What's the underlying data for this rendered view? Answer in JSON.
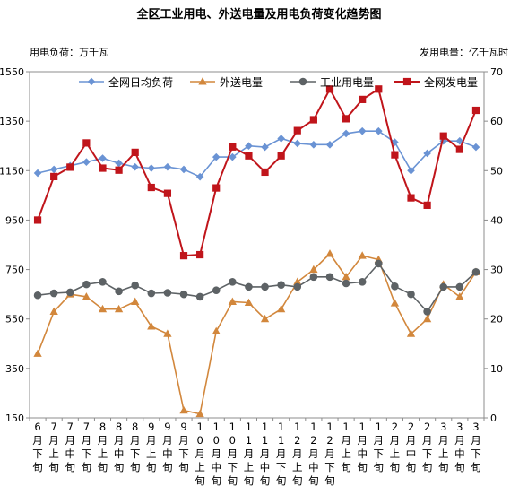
{
  "chart_data": {
    "type": "line",
    "title": "全区工业用电、外送电量及用电负荷变化趋势图",
    "left_unit": "用电负荷：万千瓦",
    "right_unit": "发用电量：亿千瓦时",
    "y_left_range": [
      150,
      1550
    ],
    "y_left_ticks": [
      "150",
      "350",
      "550",
      "750",
      "950",
      "1150",
      "1350",
      "1550"
    ],
    "y_right_range": [
      0,
      70
    ],
    "y_right_ticks": [
      "0",
      "10",
      "20",
      "30",
      "40",
      "50",
      "60",
      "70"
    ],
    "categories": [
      "6月下旬",
      "7月上旬",
      "7月中旬",
      "7月下旬",
      "8月上旬",
      "8月中旬",
      "8月下旬",
      "9月上旬",
      "9月中旬",
      "9月下旬",
      "10月上旬",
      "10月中旬",
      "10月下旬",
      "11月上旬",
      "11月中旬",
      "11月下旬",
      "12月上旬",
      "12月中旬",
      "12月下旬",
      "1月上旬",
      "1月中旬",
      "1月下旬",
      "2月上旬",
      "2月中旬",
      "2月下旬",
      "3月上旬",
      "3月中旬",
      "3月下旬"
    ],
    "series": [
      {
        "name": "全网日均负荷",
        "axis": "left",
        "color": "#6a93d4",
        "marker": "diamond",
        "values": [
          1140,
          1155,
          1170,
          1185,
          1200,
          1180,
          1165,
          1160,
          1165,
          1155,
          1125,
          1205,
          1205,
          1250,
          1245,
          1280,
          1260,
          1255,
          1255,
          1300,
          1310,
          1310,
          1265,
          1150,
          1220,
          1270,
          1270,
          1245
        ]
      },
      {
        "name": "外送电量",
        "axis": "right",
        "color": "#d2873c",
        "marker": "triangle",
        "values": [
          13.0,
          21.5,
          25.0,
          24.5,
          22.0,
          22.0,
          23.5,
          18.5,
          17.0,
          1.5,
          0.8,
          17.5,
          23.5,
          23.3,
          20.0,
          22.0,
          27.5,
          30.0,
          33.2,
          28.5,
          32.8,
          32.0,
          23.2,
          17.0,
          20.0,
          27.0,
          24.5,
          29.5
        ]
      },
      {
        "name": "工业用电量",
        "axis": "right",
        "color": "#5d6265",
        "marker": "circle",
        "values": [
          24.8,
          25.2,
          25.4,
          27.0,
          27.5,
          25.6,
          26.8,
          25.2,
          25.3,
          25.0,
          24.5,
          25.8,
          27.5,
          26.5,
          26.5,
          26.9,
          26.5,
          28.5,
          28.5,
          27.2,
          27.5,
          31.2,
          26.6,
          25.0,
          21.5,
          26.5,
          26.5,
          29.5
        ]
      },
      {
        "name": "全网发电量",
        "axis": "right",
        "color": "#c0151b",
        "marker": "square",
        "values": [
          40.0,
          48.8,
          50.7,
          55.6,
          50.5,
          50.1,
          53.7,
          46.6,
          45.4,
          32.8,
          33.0,
          46.5,
          54.8,
          53.0,
          49.7,
          53.0,
          58.1,
          60.3,
          66.5,
          60.5,
          64.4,
          66.5,
          53.2,
          44.5,
          43.0,
          57.0,
          54.3,
          62.2
        ]
      }
    ],
    "legend_position": "top-left"
  }
}
